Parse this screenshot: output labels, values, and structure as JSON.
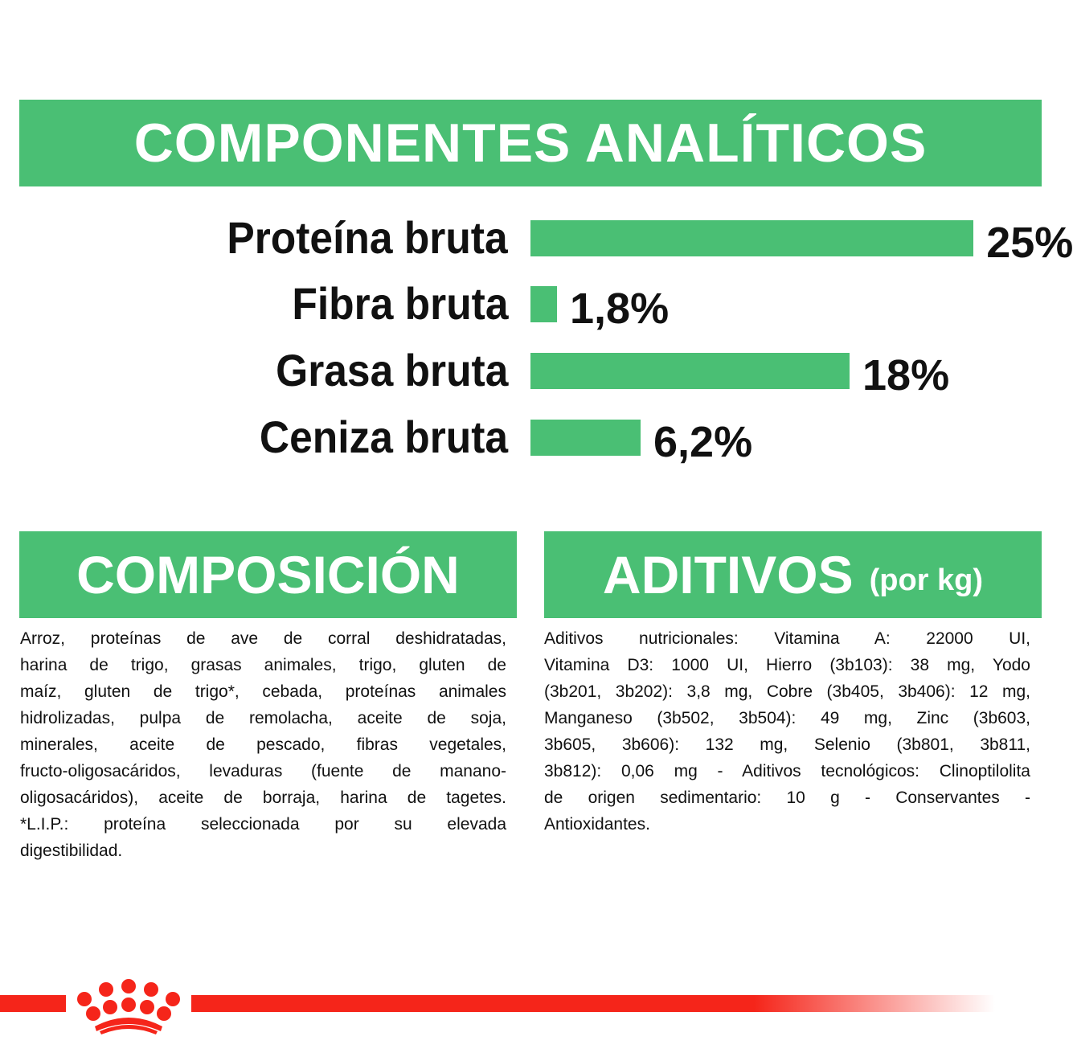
{
  "header": {
    "title": "COMPONENTES ANALÍTICOS"
  },
  "chart_data": {
    "type": "bar",
    "orientation": "horizontal",
    "categories": [
      "Proteína bruta",
      "Fibra bruta",
      "Grasa bruta",
      "Ceniza bruta"
    ],
    "values": [
      25,
      1.8,
      18,
      6.2
    ],
    "data_labels": [
      "25%",
      "1,8%",
      "18%",
      "6,2%"
    ],
    "unit": "%",
    "bar_color": "#4abf74",
    "grid": false
  },
  "composicion": {
    "title": "COMPOSICIÓN",
    "lines": [
      "Arroz, proteínas de ave de corral deshidratadas,",
      "harina de trigo, grasas animales, trigo, gluten de",
      "maíz, gluten de trigo*, cebada, proteínas animales",
      "hidrolizadas, pulpa de remolacha, aceite de soja,",
      "minerales, aceite de pescado, fibras vegetales,",
      "fructo-oligosacáridos, levaduras (fuente de manano-",
      "oligosacáridos), aceite de borraja, harina de tagetes.",
      "*L.I.P.: proteína seleccionada por su elevada",
      "digestibilidad."
    ]
  },
  "aditivos": {
    "title": "ADITIVOS",
    "subtitle": "(por kg)",
    "lines": [
      "Aditivos nutricionales: Vitamina A: 22000 UI,",
      "Vitamina D3: 1000 UI, Hierro (3b103): 38 mg, Yodo",
      "(3b201, 3b202): 3,8 mg, Cobre (3b405, 3b406): 12 mg,",
      "Manganeso (3b502, 3b504): 49 mg, Zinc (3b603,",
      "3b605, 3b606): 132 mg, Selenio (3b801, 3b811,",
      "3b812): 0,06 mg - Aditivos tecnológicos: Clinoptilolita",
      "de origen sedimentario: 10 g - Conservantes -",
      "Antioxidantes."
    ]
  },
  "footer": {
    "logo": "Royal Canin crown",
    "accent_color": "#f5251a"
  }
}
